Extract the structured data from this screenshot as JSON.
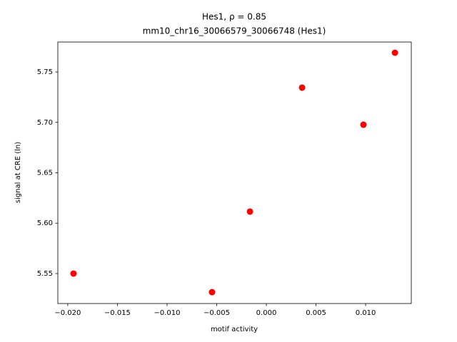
{
  "chart_data": {
    "type": "scatter",
    "title": "Hes1, ρ = 0.85",
    "subtitle": "mm10_chr16_30066579_30066748 (Hes1)",
    "x_label": "motif activity",
    "y_label": "signal at CRE (ln)",
    "series": [
      {
        "color": "#ff0000",
        "x": [
          -0.01942,
          -0.00547,
          -0.00165,
          0.0036,
          0.00978,
          0.01295
        ],
        "values": [
          5.55,
          5.5316,
          5.6115,
          5.7345,
          5.6977,
          5.7691
        ]
      }
    ],
    "xlim": [
      -0.021,
      0.0146
    ],
    "ylim": [
      5.5203,
      5.7797
    ],
    "xticks": [
      {
        "value": -0.02,
        "label": "−0.020"
      },
      {
        "value": -0.015,
        "label": "−0.015"
      },
      {
        "value": -0.01,
        "label": "−0.010"
      },
      {
        "value": -0.005,
        "label": "−0.005"
      },
      {
        "value": 0,
        "label": "0.000"
      },
      {
        "value": 0.005,
        "label": "0.005"
      },
      {
        "value": 0.01,
        "label": "0.010"
      }
    ],
    "yticks": [
      5.55,
      {
        "value": 5.6,
        "label": "5.60"
      },
      5.65,
      {
        "value": 5.7,
        "label": "5.70"
      },
      5.75
    ],
    "grid": false
  }
}
